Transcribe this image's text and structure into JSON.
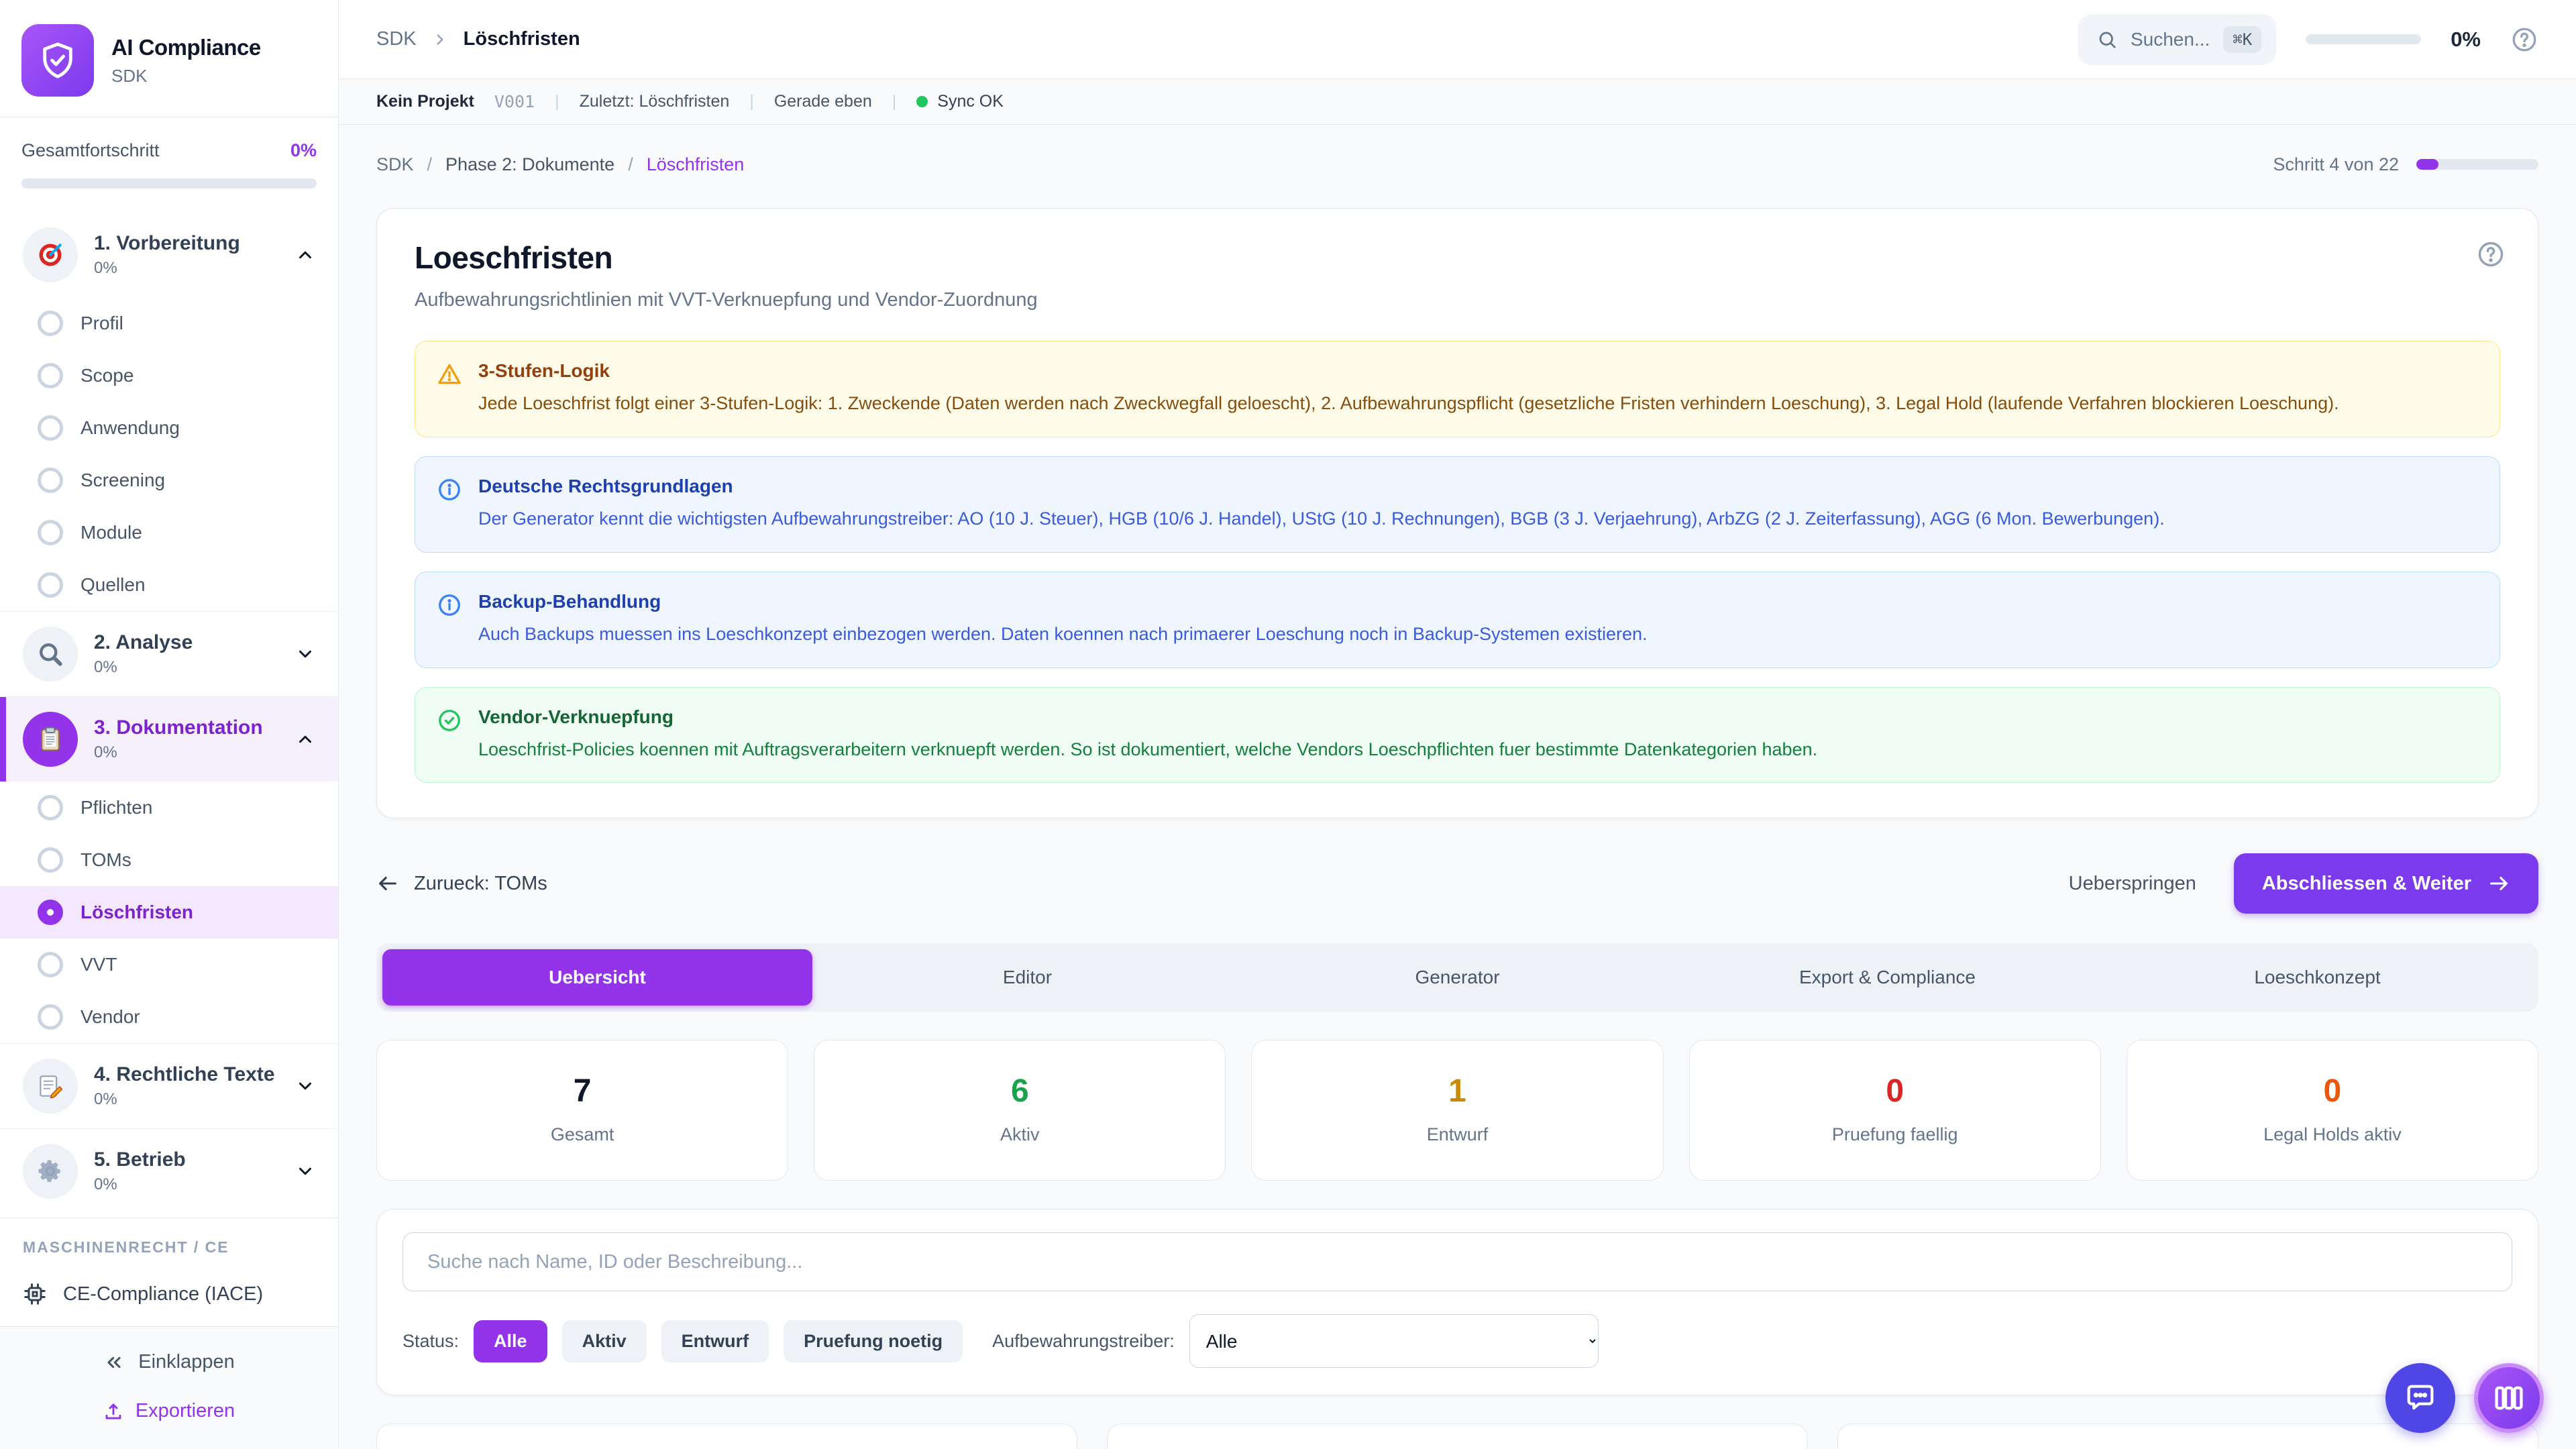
{
  "colors": {
    "accent": "#9333ea",
    "accent_btn": "#7c3aed",
    "sync_ok": "#22c55e",
    "stat_total": "#0f172a",
    "stat_active": "#16a34a",
    "stat_draft": "#ca8a04",
    "stat_review": "#dc2626",
    "stat_legal": "#ea580c"
  },
  "sidebar": {
    "app_title": "AI Compliance",
    "app_subtitle": "SDK",
    "progress_label": "Gesamtfortschritt",
    "progress_value": "0%",
    "progress_fill": "0%",
    "sections": [
      {
        "label": "1. Vorbereitung",
        "percent": "0%",
        "icon": "target-icon",
        "items": [
          "Profil",
          "Scope",
          "Anwendung",
          "Screening",
          "Module",
          "Quellen"
        ]
      },
      {
        "label": "2. Analyse",
        "percent": "0%",
        "icon": "magnifier-icon",
        "items": []
      },
      {
        "label": "3. Dokumentation",
        "percent": "0%",
        "icon": "clipboard-icon",
        "items": [
          "Pflichten",
          "TOMs",
          "Löschfristen",
          "VVT",
          "Vendor"
        ],
        "active_item": "Löschfristen"
      },
      {
        "label": "4. Rechtliche Texte",
        "percent": "0%",
        "icon": "memo-icon",
        "items": []
      },
      {
        "label": "5. Betrieb",
        "percent": "0%",
        "icon": "gear-icon",
        "items": []
      }
    ],
    "machine_section_label": "MASCHINENRECHT / CE",
    "machine_item_label": "CE-Compliance (IACE)",
    "collapse_label": "Einklappen",
    "export_label": "Exportieren"
  },
  "topbar": {
    "crumb_root": "SDK",
    "crumb_current": "Löschfristen",
    "search_label": "Suchen...",
    "search_kbd": "⌘K",
    "progress_value": "0%",
    "progress_fill": "0%"
  },
  "statusbar": {
    "project": "Kein Projekt",
    "version": "V001",
    "last": "Zuletzt: Löschfristen",
    "time": "Gerade eben",
    "sync": "Sync OK"
  },
  "pagebar": {
    "crumbs": [
      "SDK",
      "Phase 2: Dokumente",
      "Löschfristen"
    ],
    "step_label": "Schritt 4 von 22",
    "step_fill": "18%"
  },
  "hero": {
    "title": "Loeschfristen",
    "subtitle": "Aufbewahrungsrichtlinien mit VVT-Verknuepfung und Vendor-Zuordnung"
  },
  "alerts": [
    {
      "type": "warning",
      "title": "3-Stufen-Logik",
      "body": "Jede Loeschfrist folgt einer 3-Stufen-Logik: 1. Zweckende (Daten werden nach Zweckwegfall geloescht), 2. Aufbewahrungspflicht (gesetzliche Fristen verhindern Loeschung), 3. Legal Hold (laufende Verfahren blockieren Loeschung)."
    },
    {
      "type": "info",
      "title": "Deutsche Rechtsgrundlagen",
      "body": "Der Generator kennt die wichtigsten Aufbewahrungstreiber: AO (10 J. Steuer), HGB (10/6 J. Handel), UStG (10 J. Rechnungen), BGB (3 J. Verjaehrung), ArbZG (2 J. Zeiterfassung), AGG (6 Mon. Bewerbungen)."
    },
    {
      "type": "info",
      "title": "Backup-Behandlung",
      "body": "Auch Backups muessen ins Loeschkonzept einbezogen werden. Daten koennen nach primaerer Loeschung noch in Backup-Systemen existieren."
    },
    {
      "type": "success",
      "title": "Vendor-Verknuepfung",
      "body": "Loeschfrist-Policies koennen mit Auftragsverarbeitern verknuepft werden. So ist dokumentiert, welche Vendors Loeschpflichten fuer bestimmte Datenkategorien haben."
    }
  ],
  "navrow": {
    "back_label": "Zurueck: TOMs",
    "skip_label": "Ueberspringen",
    "next_label": "Abschliessen & Weiter"
  },
  "tabs": [
    {
      "label": "Uebersicht",
      "active": true
    },
    {
      "label": "Editor",
      "active": false
    },
    {
      "label": "Generator",
      "active": false
    },
    {
      "label": "Export & Compliance",
      "active": false
    },
    {
      "label": "Loeschkonzept",
      "active": false
    }
  ],
  "stats": [
    {
      "value": "7",
      "label": "Gesamt",
      "color": "#0f172a"
    },
    {
      "value": "6",
      "label": "Aktiv",
      "color": "#16a34a"
    },
    {
      "value": "1",
      "label": "Entwurf",
      "color": "#ca8a04"
    },
    {
      "value": "0",
      "label": "Pruefung faellig",
      "color": "#dc2626"
    },
    {
      "value": "0",
      "label": "Legal Holds aktiv",
      "color": "#ea580c"
    }
  ],
  "filters": {
    "search_placeholder": "Suche nach Name, ID oder Beschreibung...",
    "status_label": "Status:",
    "status_options": [
      {
        "label": "Alle",
        "active": true
      },
      {
        "label": "Aktiv",
        "active": false
      },
      {
        "label": "Entwurf",
        "active": false
      },
      {
        "label": "Pruefung noetig",
        "active": false
      }
    ],
    "driver_label": "Aufbewahrungstreiber:",
    "driver_value": "Alle"
  }
}
